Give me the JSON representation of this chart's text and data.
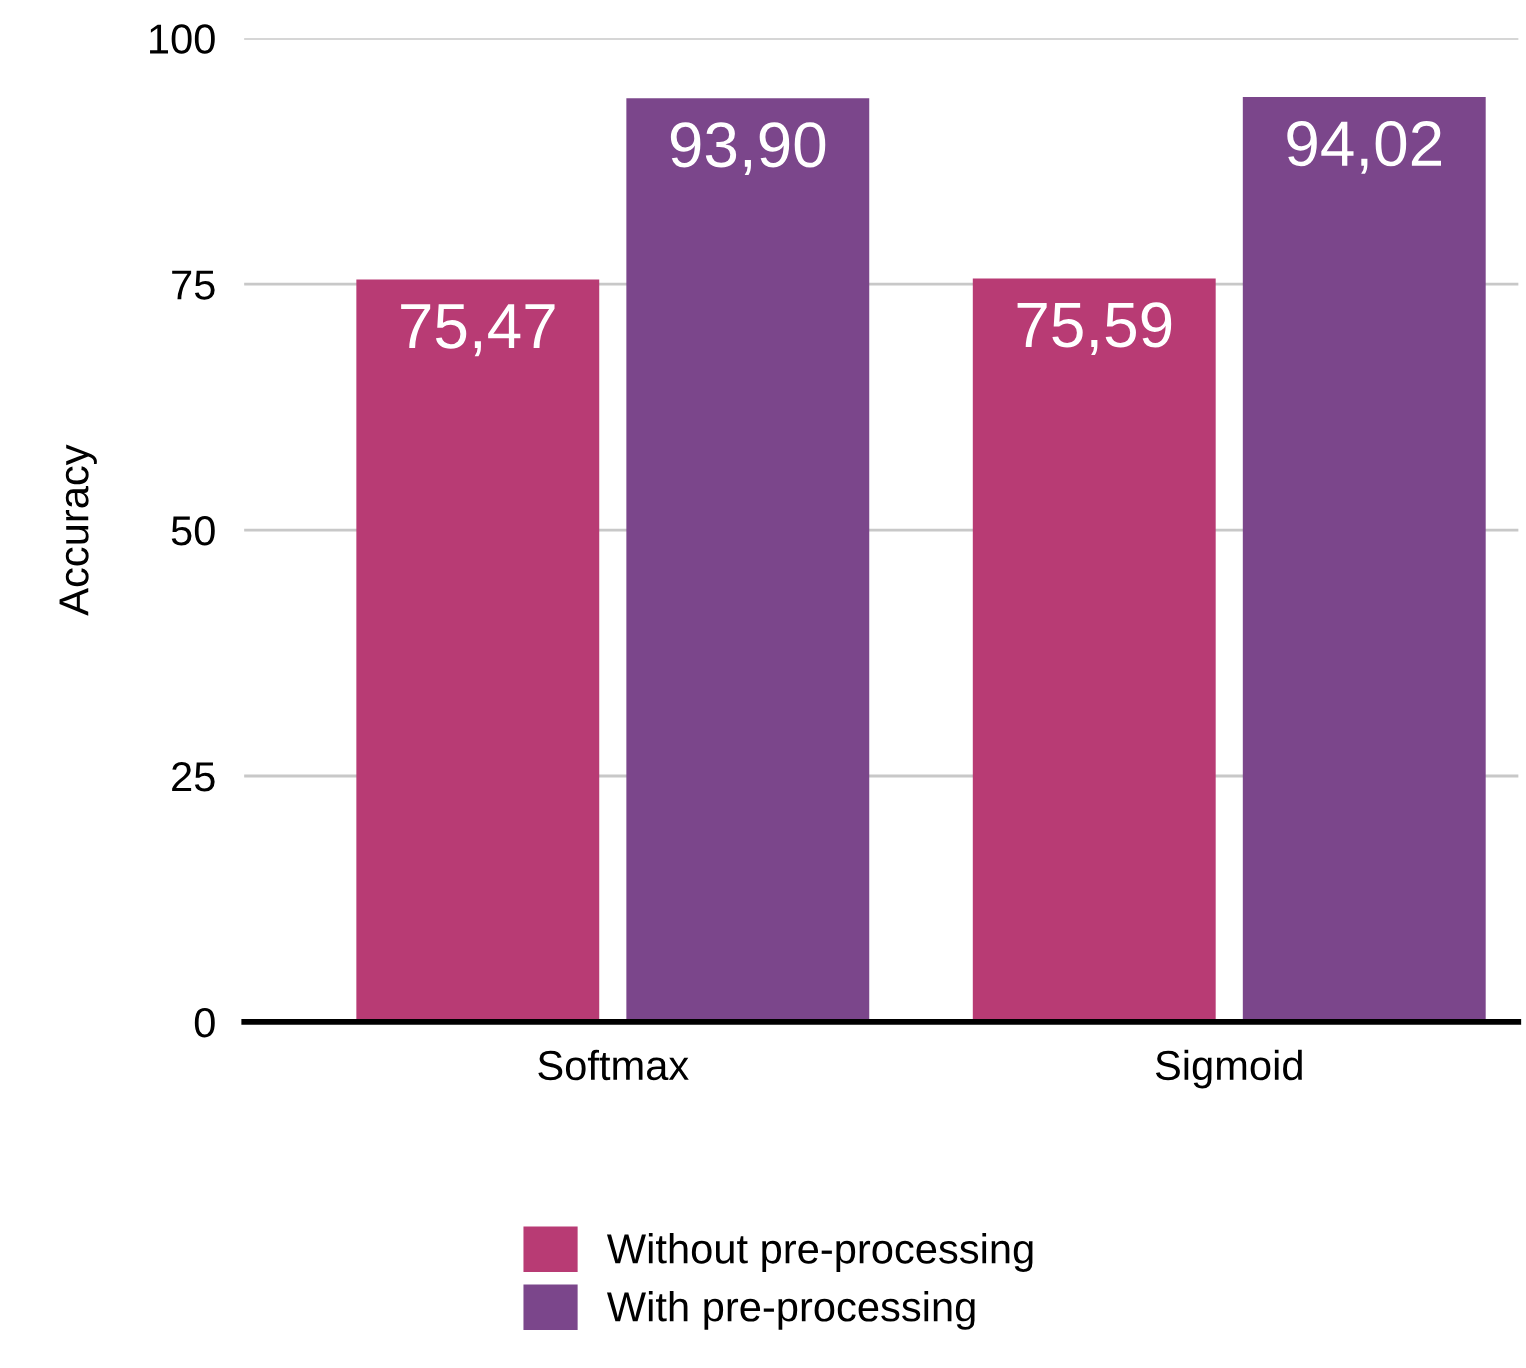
{
  "chart_data": {
    "type": "bar",
    "ylabel": "Accuracy",
    "categories": [
      "Softmax",
      "Sigmoid"
    ],
    "series": [
      {
        "name": "Without pre-processing",
        "color": "#b83b74",
        "values": [
          75.47,
          75.59
        ],
        "value_labels": [
          "75,47",
          "75,59"
        ]
      },
      {
        "name": "With pre-processing",
        "color": "#7b468b",
        "values": [
          93.9,
          94.02
        ],
        "value_labels": [
          "93,90",
          "94,02"
        ]
      }
    ],
    "ylim": [
      0,
      100
    ],
    "yticks": [
      0,
      25,
      50,
      75,
      100
    ],
    "grid": "y",
    "legend": "bottom"
  }
}
